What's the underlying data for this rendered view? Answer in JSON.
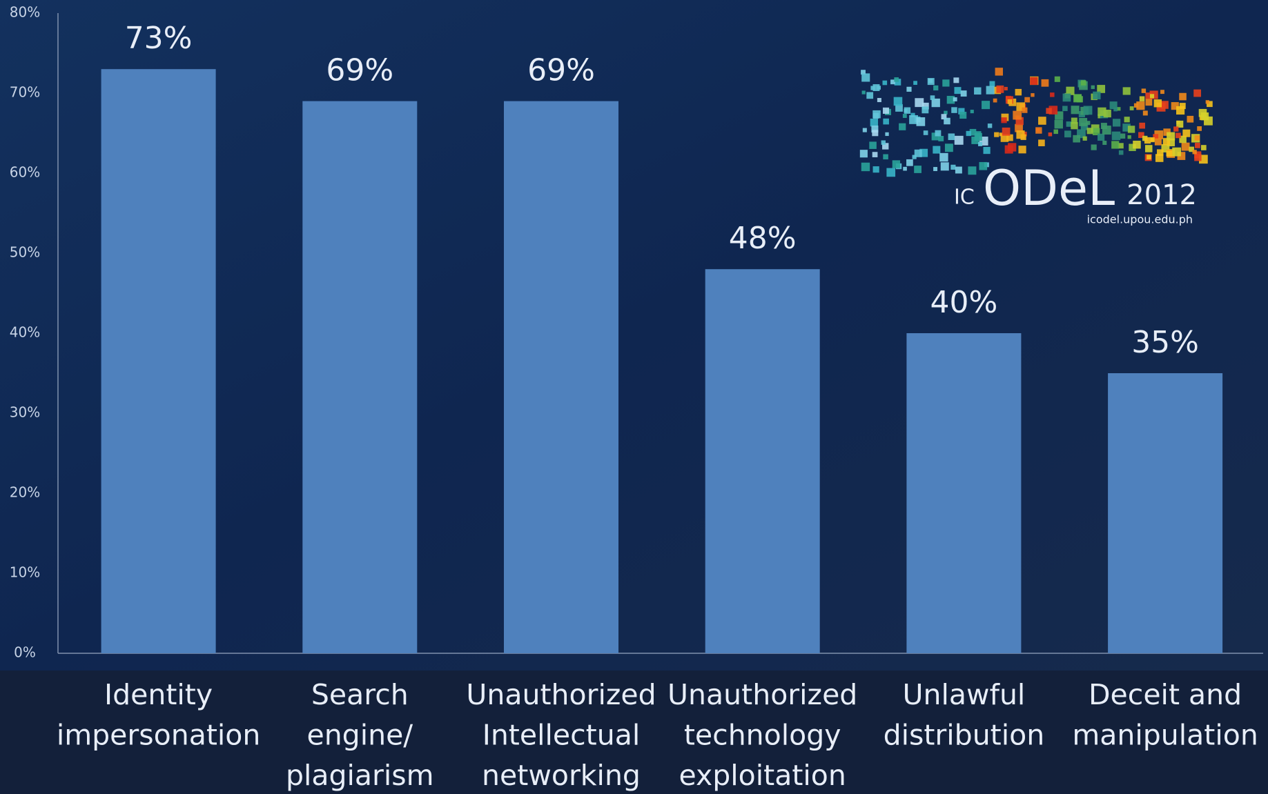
{
  "chart_data": {
    "type": "bar",
    "categories": [
      [
        "Identity",
        "impersonation"
      ],
      [
        "Search",
        "engine/",
        "plagiarism"
      ],
      [
        "Unauthorized",
        "Intellectual",
        "networking"
      ],
      [
        "Unauthorized",
        "technology",
        "exploitation"
      ],
      [
        "Unlawful",
        "distribution"
      ],
      [
        "Deceit and",
        "manipulation"
      ]
    ],
    "values": [
      73,
      69,
      69,
      48,
      40,
      35
    ],
    "value_labels": [
      "73%",
      "69%",
      "69%",
      "48%",
      "40%",
      "35%"
    ],
    "color": "#4f81bd",
    "ylim": [
      0,
      80
    ],
    "yticks": [
      {
        "value": 0,
        "label": "0%"
      },
      {
        "value": 10,
        "label": "10%"
      },
      {
        "value": 20,
        "label": "20%"
      },
      {
        "value": 30,
        "label": "30%"
      },
      {
        "value": 40,
        "label": "40%"
      },
      {
        "value": 50,
        "label": "50%"
      },
      {
        "value": 60,
        "label": "60%"
      },
      {
        "value": 70,
        "label": "70%"
      },
      {
        "value": 80,
        "label": "80%"
      }
    ],
    "grid": false
  },
  "logo": {
    "prefix": "IC",
    "name": "ODeL",
    "year": "2012",
    "url": "icodel.upou.edu.ph"
  }
}
